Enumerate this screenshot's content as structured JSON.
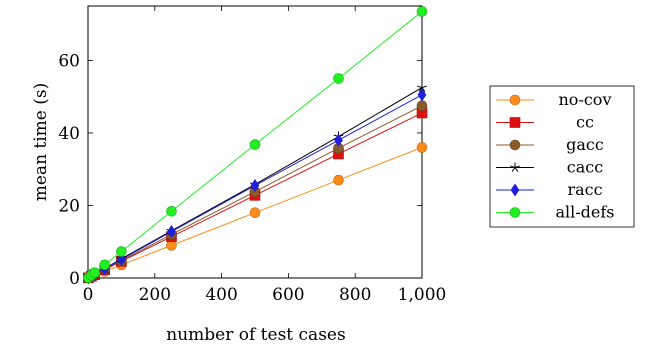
{
  "chart_data": {
    "type": "line",
    "title": "",
    "xlabel": "number of test cases",
    "ylabel": "mean time (s)",
    "xlim": [
      0,
      1000
    ],
    "ylim": [
      0,
      75
    ],
    "xticks": [
      0,
      200,
      400,
      600,
      800,
      1000
    ],
    "xtick_labels": [
      "0",
      "200",
      "400",
      "600",
      "800",
      "1,000"
    ],
    "yticks": [
      0,
      20,
      40,
      60
    ],
    "ytick_labels": [
      "0",
      "20",
      "40",
      "60"
    ],
    "grid": false,
    "legend_position": "outside-right",
    "x": [
      1,
      10,
      20,
      50,
      100,
      250,
      500,
      750,
      1000
    ],
    "series": [
      {
        "name": "no-cov",
        "color": "#ff8c1a",
        "marker": "circle",
        "values": [
          0.04,
          0.36,
          0.72,
          1.8,
          3.6,
          9.0,
          18.0,
          27.0,
          36.0
        ]
      },
      {
        "name": "cc",
        "color": "#dd1111",
        "marker": "square",
        "values": [
          0.05,
          0.46,
          0.92,
          2.3,
          4.6,
          11.4,
          22.8,
          34.2,
          45.5
        ]
      },
      {
        "name": "gacc",
        "color": "#8b5a2b",
        "marker": "circle",
        "values": [
          0.05,
          0.48,
          0.96,
          2.4,
          4.8,
          12.0,
          23.8,
          35.8,
          47.5
        ]
      },
      {
        "name": "cacc",
        "color": "#000000",
        "marker": "star",
        "values": [
          0.05,
          0.53,
          1.05,
          2.6,
          5.3,
          13.0,
          25.8,
          39.0,
          52.5
        ]
      },
      {
        "name": "racc",
        "color": "#1f1fe0",
        "marker": "diamond",
        "values": [
          0.05,
          0.51,
          1.02,
          2.55,
          5.1,
          12.8,
          25.5,
          38.0,
          50.5
        ]
      },
      {
        "name": "all-defs",
        "color": "#22ee22",
        "marker": "circle",
        "values": [
          0.07,
          0.73,
          1.46,
          3.65,
          7.3,
          18.4,
          36.8,
          55.0,
          73.5
        ]
      }
    ]
  }
}
